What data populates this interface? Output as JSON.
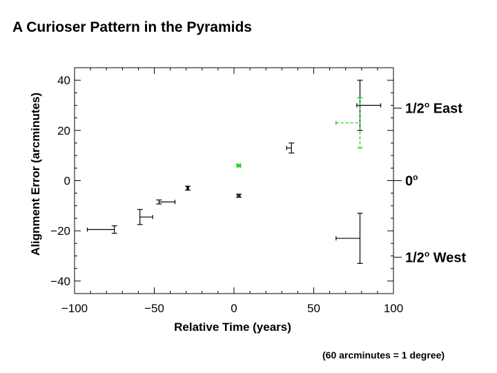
{
  "title": "A Curioser Pattern in the Pyramids",
  "footnote": "(60 arcminutes = 1 degree)",
  "chart_data": {
    "type": "scatter",
    "xlabel": "Relative Time (years)",
    "ylabel": "Alignment Error (arcminutes)",
    "xlim": [
      -100,
      100
    ],
    "ylim": [
      -45,
      45
    ],
    "x_ticks": [
      "−100",
      "−50",
      "0",
      "50",
      "100"
    ],
    "y_ticks": [
      "−40",
      "−20",
      "0",
      "20",
      "40"
    ],
    "x_tick_values": [
      -100,
      -50,
      0,
      50,
      100
    ],
    "y_tick_values": [
      -40,
      -20,
      0,
      20,
      40
    ],
    "right_axis": [
      {
        "value": 28.9,
        "label": "1/2",
        "sup": "o",
        "suffix": " East"
      },
      {
        "value": 0,
        "label": "0",
        "sup": "o",
        "suffix": ""
      },
      {
        "value": -30.5,
        "label": "1/2",
        "sup": "o",
        "suffix": " West"
      }
    ],
    "colors": {
      "black": "#000000",
      "green": "#00cc00"
    },
    "series": [
      {
        "color": "black",
        "points": [
          {
            "x": -75,
            "y": -19.5,
            "xerr": [
              17,
              0
            ],
            "yerr": [
              1.5,
              1.5
            ]
          },
          {
            "x": -59,
            "y": -14.5,
            "xerr": [
              0,
              8
            ],
            "yerr": [
              3,
              3
            ]
          },
          {
            "x": -47,
            "y": -8.5,
            "xerr": [
              0,
              10
            ],
            "yerr": [
              0.8,
              0.8
            ]
          },
          {
            "x": -29,
            "y": -3,
            "xerr": [
              0.5,
              0.5
            ],
            "yerr": [
              0.8,
              0.8
            ]
          },
          {
            "x": 3,
            "y": -6,
            "xerr": [
              0.8,
              0.8
            ],
            "yerr": [
              0.6,
              0.6
            ]
          },
          {
            "x": 36,
            "y": 13,
            "xerr": [
              3,
              0
            ],
            "yerr": [
              2,
              2
            ]
          },
          {
            "x": 79,
            "y": 30,
            "xerr": [
              2,
              13
            ],
            "yerr": [
              10,
              10
            ]
          },
          {
            "x": 79,
            "y": -23,
            "xerr": [
              15,
              0
            ],
            "yerr": [
              10,
              10
            ]
          }
        ]
      },
      {
        "color": "green",
        "dashed": true,
        "points": [
          {
            "x": 3,
            "y": 6,
            "xerr": [
              1,
              1
            ],
            "yerr": [
              0.5,
              0.5
            ]
          },
          {
            "x": 79,
            "y": 23,
            "xerr": [
              15,
              0
            ],
            "yerr": [
              10,
              10
            ]
          }
        ]
      }
    ]
  }
}
